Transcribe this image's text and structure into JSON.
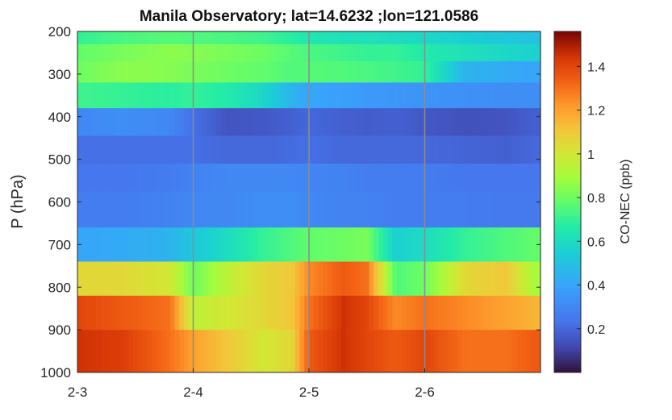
{
  "chart_data": {
    "type": "heatmap",
    "title": "Manila Observatory; lat=14.6232 ;lon=121.0586",
    "ylabel": "P (hPa)",
    "xlabel": "",
    "colorbar_label": "CO-NEC (ppb)",
    "colormap": "turbo",
    "clim": [
      0,
      1.56
    ],
    "y_axis_reversed": true,
    "ylim": [
      200,
      1000
    ],
    "xlim": [
      0,
      4
    ],
    "x_tick_labels": [
      "2-3",
      "2-4",
      "2-5",
      "2-6"
    ],
    "x_ticks": [
      0,
      1,
      2,
      3
    ],
    "y_ticks": [
      200,
      300,
      400,
      500,
      600,
      700,
      800,
      900,
      1000
    ],
    "colorbar_ticks": [
      0.2,
      0.4,
      0.6,
      0.8,
      1,
      1.2,
      1.4
    ],
    "day_gridlines": [
      1,
      2,
      3
    ],
    "levels_hPa": [
      200,
      250,
      300,
      350,
      400,
      450,
      500,
      550,
      600,
      650,
      700,
      750,
      800,
      850,
      900,
      950,
      1000
    ],
    "time_anchors_days": [
      0,
      0.4,
      0.8,
      1.0,
      1.3,
      1.6,
      1.85,
      2.0,
      2.3,
      2.5,
      2.75,
      3.0,
      3.35,
      3.7,
      3.95
    ],
    "rows": [
      {
        "p": [
          200,
          230
        ],
        "values": [
          0.7,
          0.74,
          0.76,
          0.75,
          0.74,
          0.72,
          0.68,
          0.64,
          0.62,
          0.62,
          0.6,
          0.58,
          0.55,
          0.52,
          0.5
        ]
      },
      {
        "p": [
          230,
          270
        ],
        "values": [
          0.78,
          0.82,
          0.85,
          0.84,
          0.82,
          0.8,
          0.76,
          0.74,
          0.72,
          0.7,
          0.7,
          0.66,
          0.62,
          0.58,
          0.56
        ]
      },
      {
        "p": [
          270,
          320
        ],
        "values": [
          0.8,
          0.85,
          0.84,
          0.82,
          0.8,
          0.78,
          0.75,
          0.76,
          0.75,
          0.74,
          0.72,
          0.7,
          0.45,
          0.42,
          0.4
        ]
      },
      {
        "p": [
          320,
          380
        ],
        "values": [
          0.72,
          0.7,
          0.68,
          0.7,
          0.66,
          0.58,
          0.45,
          0.4,
          0.38,
          0.36,
          0.35,
          0.34,
          0.33,
          0.32,
          0.32
        ]
      },
      {
        "p": [
          380,
          445
        ],
        "values": [
          0.3,
          0.32,
          0.3,
          0.22,
          0.15,
          0.16,
          0.18,
          0.2,
          0.18,
          0.17,
          0.18,
          0.16,
          0.14,
          0.15,
          0.18
        ]
      },
      {
        "p": [
          445,
          510
        ],
        "values": [
          0.22,
          0.22,
          0.22,
          0.22,
          0.2,
          0.2,
          0.21,
          0.22,
          0.2,
          0.2,
          0.2,
          0.2,
          0.19,
          0.18,
          0.2
        ]
      },
      {
        "p": [
          510,
          575
        ],
        "values": [
          0.24,
          0.24,
          0.26,
          0.28,
          0.3,
          0.3,
          0.3,
          0.29,
          0.28,
          0.26,
          0.26,
          0.26,
          0.24,
          0.24,
          0.24
        ]
      },
      {
        "p": [
          575,
          660
        ],
        "values": [
          0.26,
          0.26,
          0.28,
          0.3,
          0.3,
          0.32,
          0.32,
          0.3,
          0.28,
          0.28,
          0.26,
          0.26,
          0.26,
          0.25,
          0.25
        ]
      },
      {
        "p": [
          660,
          740
        ],
        "values": [
          0.4,
          0.42,
          0.45,
          0.52,
          0.6,
          0.7,
          0.75,
          0.78,
          0.8,
          0.82,
          0.55,
          0.6,
          0.7,
          0.75,
          0.78
        ]
      },
      {
        "p": [
          740,
          820
        ],
        "values": [
          1.05,
          1.05,
          1.0,
          0.8,
          0.95,
          1.05,
          1.1,
          1.25,
          1.35,
          1.3,
          0.75,
          0.8,
          1.05,
          1.1,
          0.9
        ]
      },
      {
        "p": [
          820,
          900
        ],
        "values": [
          1.4,
          1.35,
          1.3,
          0.95,
          1.0,
          1.05,
          1.1,
          1.3,
          1.45,
          1.4,
          1.25,
          1.3,
          1.25,
          1.2,
          1.15
        ]
      },
      {
        "p": [
          900,
          1000
        ],
        "values": [
          1.45,
          1.42,
          1.3,
          1.2,
          1.1,
          1.0,
          1.05,
          1.35,
          1.45,
          1.4,
          1.35,
          1.4,
          1.3,
          1.3,
          1.35
        ]
      }
    ]
  }
}
